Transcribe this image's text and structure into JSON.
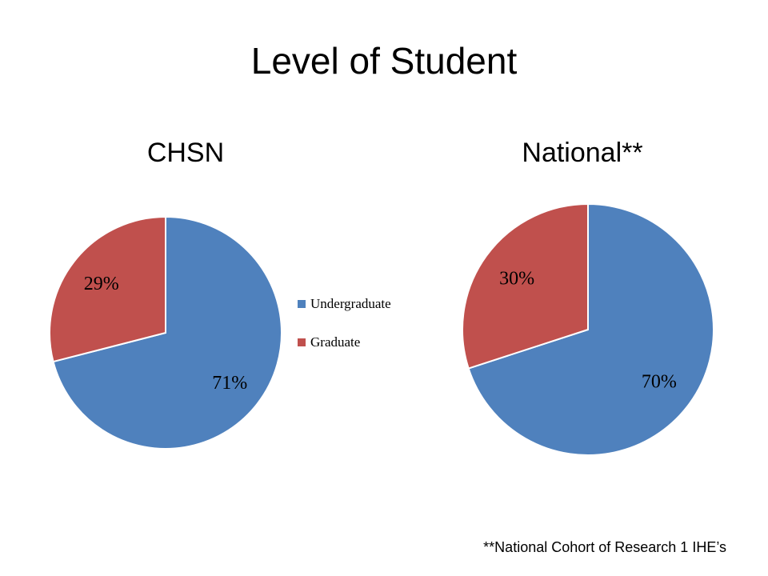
{
  "title": "Level of Student",
  "footnote": "**National Cohort of Research 1 IHE’s",
  "chart_data": [
    {
      "type": "pie",
      "title": "CHSN",
      "categories": [
        "Undergraduate",
        "Graduate"
      ],
      "values": [
        71,
        29
      ],
      "value_labels": [
        "71%",
        "29%"
      ],
      "colors": [
        "#4f81bd",
        "#c0504d"
      ],
      "legend": "right"
    },
    {
      "type": "pie",
      "title": "National**",
      "values": [
        70,
        30
      ],
      "value_labels": [
        "70%",
        "30%"
      ],
      "colors": [
        "#4f81bd",
        "#c0504d"
      ]
    }
  ]
}
